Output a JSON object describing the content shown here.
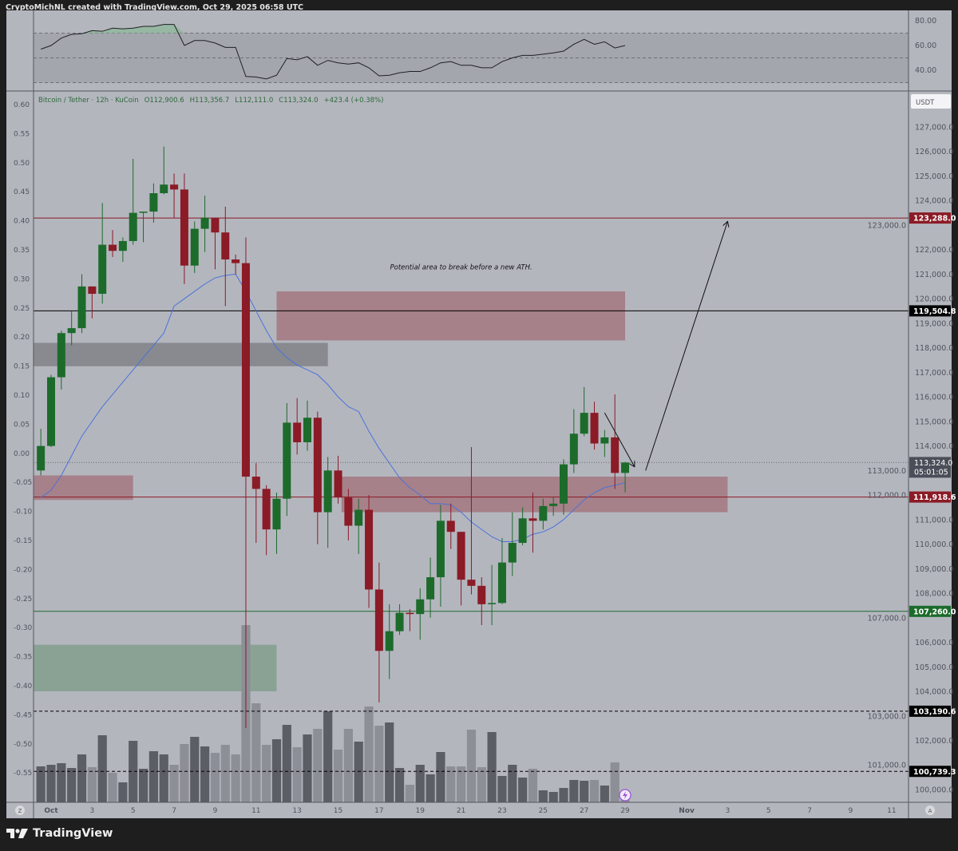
{
  "header": {
    "text": "CryptoMichNL created with TradingView.com, Oct 29, 2025 06:58 UTC"
  },
  "legend": {
    "symbol": "Bitcoin / Tether · 12h · KuCoin",
    "open": "O112,900.6",
    "high": "H113,356.7",
    "low": "L112,111.0",
    "close": "C113,324.0",
    "change": "+423.4 (+0.38%)"
  },
  "currency_button": "USDT",
  "logo": {
    "text": "TradingView"
  },
  "corner_left": "Z",
  "corner_right": "A",
  "colors": {
    "background": "#b4b6be",
    "frame": "#1e1e1f",
    "up": "#1c6b2b",
    "down": "#8b1b26",
    "ma": "#4a72d8",
    "volume_dark": "#5c5e65",
    "volume_light": "#8d8f97",
    "zone_pink": "#a2747c",
    "zone_gray": "#7d7f84",
    "zone_green": "#7f9e89"
  },
  "chart_data": {
    "type": "candlestick",
    "symbol": "Bitcoin / Tether",
    "interval": "12h",
    "first_candle": "2025-09-30 12:00",
    "ohlc": [
      [
        113000,
        114700,
        112800,
        114000
      ],
      [
        114000,
        116900,
        113950,
        116800
      ],
      [
        116800,
        118700,
        116300,
        118600
      ],
      [
        118600,
        119500,
        118100,
        118800
      ],
      [
        118800,
        121000,
        118600,
        120500
      ],
      [
        120500,
        120500,
        119200,
        120200
      ],
      [
        120200,
        123900,
        119800,
        122200
      ],
      [
        122200,
        122800,
        121700,
        121950
      ],
      [
        121950,
        122500,
        121500,
        122350
      ],
      [
        122350,
        125700,
        122200,
        123500
      ],
      [
        123500,
        123550,
        122300,
        123550
      ],
      [
        123550,
        124700,
        123100,
        124300
      ],
      [
        124300,
        126200,
        124250,
        124650
      ],
      [
        124650,
        125100,
        123300,
        124450
      ],
      [
        124450,
        125100,
        120600,
        121350
      ],
      [
        121350,
        123150,
        121050,
        122850
      ],
      [
        122850,
        124200,
        121900,
        123300
      ],
      [
        123300,
        123300,
        121200,
        122700
      ],
      [
        122700,
        123750,
        119700,
        121600
      ],
      [
        121600,
        121800,
        121000,
        121450
      ],
      [
        121450,
        122500,
        102500,
        112750
      ],
      [
        112750,
        113300,
        110050,
        112250
      ],
      [
        112250,
        112400,
        109550,
        110600
      ],
      [
        110600,
        112100,
        109600,
        111850
      ],
      [
        111850,
        115750,
        111150,
        114950
      ],
      [
        114950,
        115950,
        113650,
        114150
      ],
      [
        114150,
        115850,
        113800,
        115150
      ],
      [
        115150,
        115400,
        110000,
        111300
      ],
      [
        111300,
        113550,
        109850,
        113000
      ],
      [
        113000,
        113600,
        111650,
        111900
      ],
      [
        111900,
        112250,
        110150,
        110750
      ],
      [
        110750,
        111850,
        109600,
        111400
      ],
      [
        111400,
        112000,
        107400,
        108150
      ],
      [
        108150,
        109250,
        103550,
        105650
      ],
      [
        105650,
        107550,
        104500,
        106450
      ],
      [
        106450,
        107550,
        106300,
        107200
      ],
      [
        107200,
        107350,
        106450,
        107150
      ],
      [
        107150,
        108200,
        106100,
        107750
      ],
      [
        107750,
        109450,
        107000,
        108650
      ],
      [
        108650,
        111600,
        107450,
        110950
      ],
      [
        110950,
        111650,
        109800,
        110500
      ],
      [
        110500,
        110500,
        107500,
        108550
      ],
      [
        108550,
        113950,
        107950,
        108300
      ],
      [
        108300,
        108650,
        106700,
        107550
      ],
      [
        107550,
        109150,
        106700,
        107600
      ],
      [
        107600,
        110250,
        107550,
        109250
      ],
      [
        109250,
        111300,
        108700,
        110050
      ],
      [
        110050,
        111500,
        109950,
        111050
      ],
      [
        111050,
        112100,
        109650,
        110950
      ],
      [
        110950,
        111850,
        110600,
        111550
      ],
      [
        111550,
        111900,
        111150,
        111650
      ],
      [
        111650,
        113450,
        111200,
        113250
      ],
      [
        113250,
        115500,
        112900,
        114500
      ],
      [
        114500,
        116400,
        114400,
        115350
      ],
      [
        115350,
        115800,
        113850,
        114100
      ],
      [
        114100,
        114650,
        113550,
        114350
      ],
      [
        114350,
        116100,
        112250,
        112900
      ],
      [
        112900,
        113356.7,
        112111,
        113324
      ]
    ],
    "moving_average": [
      111900,
      112200,
      112800,
      113600,
      114400,
      115000,
      115600,
      116100,
      116600,
      117100,
      117600,
      118100,
      118600,
      119700,
      120000,
      120300,
      120600,
      120850,
      120950,
      121000,
      120300,
      119500,
      118700,
      118000,
      117600,
      117300,
      117100,
      116900,
      116500,
      116000,
      115600,
      115400,
      114600,
      113900,
      113300,
      112700,
      112300,
      112000,
      111650,
      111650,
      111600,
      111300,
      110900,
      110600,
      110300,
      110100,
      110100,
      110200,
      110400,
      110500,
      110700,
      111000,
      111400,
      111800,
      112100,
      112300,
      112400,
      112500
    ],
    "volume_relative": [
      45,
      47,
      49,
      43,
      60,
      44,
      84,
      37,
      25,
      77,
      42,
      64,
      60,
      47,
      73,
      82,
      70,
      62,
      72,
      60,
      222,
      124,
      72,
      79,
      97,
      69,
      85,
      92,
      114,
      66,
      92,
      76,
      120,
      96,
      100,
      43,
      22,
      47,
      35,
      63,
      45,
      45,
      91,
      44,
      88,
      33,
      47,
      31,
      42,
      15,
      13,
      18,
      28,
      27,
      28,
      21,
      50,
      8
    ],
    "volume_shade": [
      "d",
      "d",
      "d",
      "d",
      "d",
      "l",
      "d",
      "l",
      "d",
      "d",
      "d",
      "d",
      "d",
      "l",
      "l",
      "d",
      "d",
      "l",
      "l",
      "l",
      "l",
      "l",
      "l",
      "d",
      "d",
      "l",
      "d",
      "l",
      "d",
      "l",
      "l",
      "d",
      "l",
      "l",
      "d",
      "d",
      "l",
      "d",
      "d",
      "d",
      "l",
      "l",
      "l",
      "l",
      "d",
      "d",
      "d",
      "d",
      "l",
      "d",
      "d",
      "d",
      "d",
      "d",
      "l",
      "d",
      "l",
      "l"
    ],
    "rsi": {
      "values": [
        57,
        60,
        66,
        69,
        69.5,
        72,
        71.5,
        74,
        73.5,
        74,
        75.5,
        75.5,
        77,
        77,
        60,
        64,
        64,
        62,
        58.5,
        58.5,
        35,
        34.5,
        33,
        36,
        49.5,
        48.5,
        51,
        44,
        48,
        46,
        45,
        46,
        42,
        35.5,
        36,
        38,
        39,
        39,
        42,
        46,
        47,
        44,
        44,
        42,
        42,
        47,
        50,
        52,
        52,
        53,
        54,
        55.5,
        61,
        65,
        61,
        63,
        58,
        60
      ],
      "levels": [
        70,
        50,
        30
      ],
      "ticks": [
        "80.00",
        "60.00",
        "40.00"
      ]
    },
    "price_ticks": [
      "127,000.0",
      "126,000.0",
      "125,000.0",
      "124,000.0",
      "123,000.0",
      "122,000.0",
      "121,000.0",
      "120,000.0",
      "119,000.0",
      "118,000.0",
      "117,000.0",
      "116,000.0",
      "115,000.0",
      "114,000.0",
      "113,000.0",
      "112,000.0",
      "111,000.0",
      "110,000.0",
      "109,000.0",
      "108,000.0",
      "107,000.0",
      "106,000.0",
      "105,000.0",
      "104,000.0",
      "103,000.0",
      "102,000.0",
      "101,000.0",
      "100,000.0"
    ],
    "left_ticks": [
      "0.60",
      "0.55",
      "0.50",
      "0.45",
      "0.40",
      "0.35",
      "0.30",
      "0.25",
      "0.20",
      "0.15",
      "0.10",
      "0.05",
      "0.00",
      "-0.05",
      "-0.10",
      "-0.15",
      "-0.20",
      "-0.25",
      "-0.30",
      "-0.35",
      "-0.40",
      "-0.45",
      "-0.50",
      "-0.55"
    ],
    "time_ticks": [
      {
        "label": "Oct",
        "date": "2025-10-01"
      },
      {
        "label": "3",
        "date": "2025-10-03"
      },
      {
        "label": "5",
        "date": "2025-10-05"
      },
      {
        "label": "7",
        "date": "2025-10-07"
      },
      {
        "label": "9",
        "date": "2025-10-09"
      },
      {
        "label": "11",
        "date": "2025-10-11"
      },
      {
        "label": "13",
        "date": "2025-10-13"
      },
      {
        "label": "15",
        "date": "2025-10-15"
      },
      {
        "label": "17",
        "date": "2025-10-17"
      },
      {
        "label": "19",
        "date": "2025-10-19"
      },
      {
        "label": "21",
        "date": "2025-10-21"
      },
      {
        "label": "23",
        "date": "2025-10-23"
      },
      {
        "label": "25",
        "date": "2025-10-25"
      },
      {
        "label": "27",
        "date": "2025-10-27"
      },
      {
        "label": "29",
        "date": "2025-10-29"
      },
      {
        "label": "Nov",
        "date": "2025-11-01"
      },
      {
        "label": "3",
        "date": "2025-11-03"
      },
      {
        "label": "5",
        "date": "2025-11-05"
      },
      {
        "label": "7",
        "date": "2025-11-07"
      },
      {
        "label": "9",
        "date": "2025-11-09"
      },
      {
        "label": "11",
        "date": "2025-11-11"
      }
    ],
    "levels": [
      {
        "price": 123288.0,
        "label": "123,288.0",
        "color": "#8b1b26",
        "style": "solid"
      },
      {
        "price": 119504.8,
        "label": "119,504.8",
        "color": "#000000",
        "style": "solid"
      },
      {
        "price": 111918.6,
        "label": "111,918.6",
        "color": "#8b1b26",
        "style": "solid"
      },
      {
        "price": 107260.0,
        "label": "107,260.0",
        "color": "#1c6b2b",
        "style": "solid"
      },
      {
        "price": 103190.6,
        "label": "103,190.6",
        "color": "#000000",
        "style": "dashed"
      },
      {
        "price": 100739.3,
        "label": "100,739.3",
        "color": "#000000",
        "style": "dashed"
      }
    ],
    "current_price": {
      "price": 113324.0,
      "label": "113,324.0",
      "countdown": "05:01:05",
      "color": "#4a4e58"
    },
    "zones": [
      {
        "kind": "gray",
        "start": "2025-09-30 00:00",
        "end": "2025-10-14 12:00",
        "low": 117250,
        "high": 118200
      },
      {
        "kind": "pink",
        "start": "2025-10-12 00:00",
        "end": "2025-10-29 00:00",
        "low": 118300,
        "high": 120300
      },
      {
        "kind": "pink",
        "start": "2025-09-30 00:00",
        "end": "2025-10-05 00:00",
        "low": 111800,
        "high": 112800
      },
      {
        "kind": "pink",
        "start": "2025-10-15 04:00",
        "end": "2025-11-03 00:00",
        "low": 111300,
        "high": 112750
      },
      {
        "kind": "green",
        "start": "2025-09-30 00:00",
        "end": "2025-10-12 00:00",
        "low": 104000,
        "high": 105900
      }
    ],
    "arrows": [
      {
        "from": [
          "2025-10-28 00:00",
          115350
        ],
        "to": [
          "2025-10-29 11:00",
          113150
        ]
      },
      {
        "from": [
          "2025-10-30 00:00",
          113000
        ],
        "to": [
          "2025-11-03 00:00",
          123150
        ]
      }
    ],
    "annotation": {
      "text": "Potential area to break before a new ATH.",
      "date": "2025-10-21 00:00",
      "price": 121200
    }
  }
}
